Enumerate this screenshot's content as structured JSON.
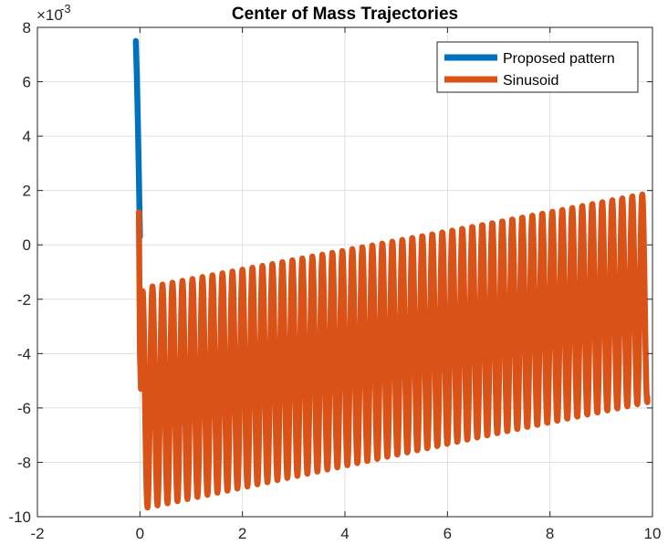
{
  "chart_data": {
    "type": "line",
    "title": "Center of Mass Trajectories",
    "xlabel": "",
    "ylabel": "",
    "xlim": [
      -2,
      10
    ],
    "ylim": [
      -0.01,
      0.008
    ],
    "x_ticks": [
      "-2",
      "0",
      "2",
      "4",
      "6",
      "8",
      "10"
    ],
    "x_tick_values": [
      -2,
      0,
      2,
      4,
      6,
      8,
      10
    ],
    "y_ticks": [
      "-10",
      "-8",
      "-6",
      "-4",
      "-2",
      "0",
      "2",
      "4",
      "6",
      "8"
    ],
    "y_tick_values": [
      -0.01,
      -0.008,
      -0.006,
      -0.004,
      -0.002,
      0,
      0.002,
      0.004,
      0.006,
      0.008
    ],
    "y_exponent_base": "×10",
    "y_exponent_power": "-3",
    "grid": true,
    "legend_position": "top-right",
    "series": [
      {
        "name": "Proposed pattern",
        "color": "#0072BD",
        "x": [
          -0.08,
          -0.06,
          -0.04,
          -0.02,
          0.0
        ],
        "y": [
          0.0075,
          0.0062,
          0.0045,
          0.0025,
          0.0003
        ]
      },
      {
        "name": "Sinusoid",
        "color": "#D95319",
        "x_start": -0.02,
        "x_end": 9.9,
        "initial_segment": {
          "x": [
            -0.02,
            0.0,
            0.02,
            0.05
          ],
          "y": [
            0.0012,
            -0.004,
            -0.0053,
            -0.0017
          ]
        },
        "oscillation_period": 0.195,
        "crest_start": -0.0016,
        "crest_end": 0.0019,
        "trough_start": -0.0097,
        "trough_end": -0.0058,
        "end_value": -0.0056
      }
    ]
  }
}
